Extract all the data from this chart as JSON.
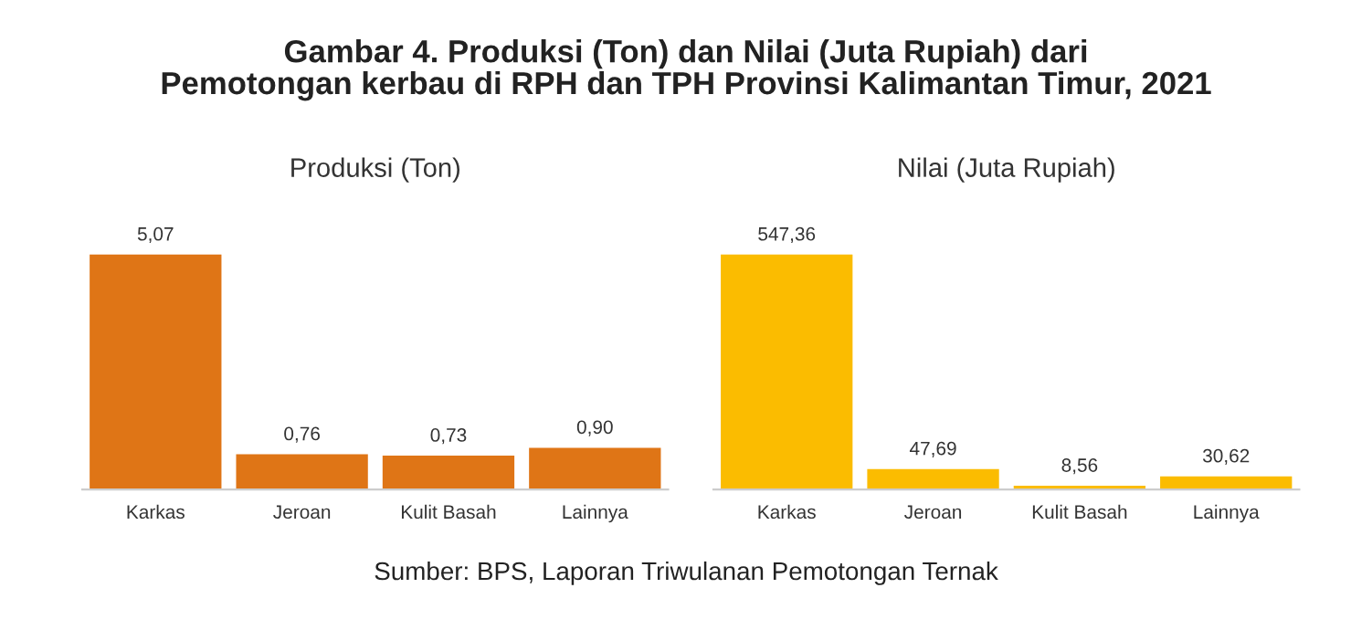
{
  "chart_data": [
    {
      "type": "bar",
      "title": "Gambar 4. Produksi (Ton) dan Nilai (Juta Rupiah) dari\nPemotongan kerbau di RPH dan TPH Provinsi Kalimantan Timur, 2021",
      "subtitle": "Produksi (Ton)",
      "categories": [
        "Karkas",
        "Jeroan",
        "Kulit Basah",
        "Lainnya"
      ],
      "values": [
        5.07,
        0.76,
        0.73,
        0.9
      ],
      "value_labels": [
        "5,07",
        "0,76",
        "0,73",
        "0,90"
      ],
      "color": "#df7516",
      "tick_labels": "x",
      "grid": false,
      "legend": false
    },
    {
      "type": "bar",
      "subtitle": "Nilai (Juta Rupiah)",
      "categories": [
        "Karkas",
        "Jeroan",
        "Kulit Basah",
        "Lainnya"
      ],
      "values": [
        547.36,
        47.69,
        8.56,
        30.62
      ],
      "value_labels": [
        "547,36",
        "47,69",
        "8,56",
        "30,62"
      ],
      "color": "#fbbc00",
      "tick_labels": "x",
      "grid": false,
      "legend": false,
      "annotations": [
        "Sumber: BPS, Laporan Triwulanan Pemotongan Ternak"
      ]
    }
  ]
}
